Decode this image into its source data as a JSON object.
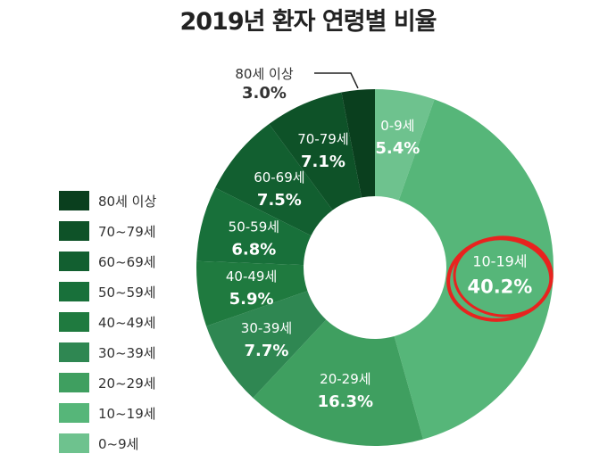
{
  "chart_data": {
    "type": "pie",
    "title": "2019년 환자 연령별 비율",
    "categories": [
      "0-9세",
      "10-19세",
      "20-29세",
      "30-39세",
      "40-49세",
      "50-59세",
      "60-69세",
      "70-79세",
      "80세 이상"
    ],
    "values": [
      5.4,
      40.2,
      16.3,
      7.7,
      5.9,
      6.8,
      7.5,
      7.1,
      3.0
    ],
    "value_labels": [
      "5.4%",
      "40.2%",
      "16.3%",
      "7.7%",
      "5.9%",
      "6.8%",
      "7.5%",
      "7.1%",
      "3.0%"
    ],
    "colors": [
      "#6ec28e",
      "#56b679",
      "#3f9f60",
      "#2f8752",
      "#1f7a3f",
      "#18703a",
      "#125f30",
      "#0e5228",
      "#0a3f1e"
    ],
    "donut": true,
    "legend_placement": "left",
    "legend": [
      "80세 이상",
      "70~79세",
      "60~69세",
      "50~59세",
      "40~49세",
      "30~39세",
      "20~29세",
      "10~19세",
      "0~9세"
    ],
    "highlight": {
      "category": "10-19세",
      "color": "#e8231f"
    }
  }
}
